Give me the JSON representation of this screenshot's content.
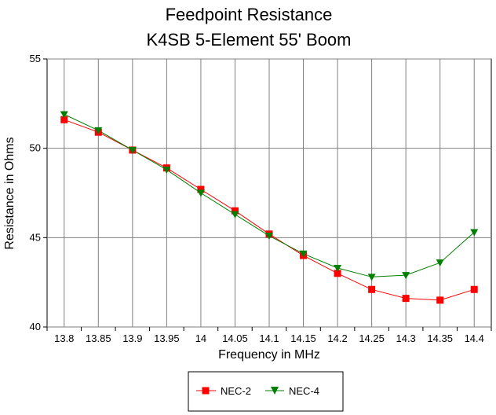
{
  "chart_data": {
    "type": "line",
    "title": [
      "Feedpoint Resistance",
      "K4SB 5-Element 55' Boom"
    ],
    "xlabel": "Frequency in MHz",
    "ylabel": "Resistance in Ohms",
    "categories": [
      "13.8",
      "13.85",
      "13.9",
      "13.95",
      "14",
      "14.05",
      "14.1",
      "14.15",
      "14.2",
      "14.25",
      "14.3",
      "14.35",
      "14.4"
    ],
    "ylim": [
      40,
      55
    ],
    "yticks": [
      "40",
      "45",
      "50",
      "55"
    ],
    "grid": true,
    "legend_position": "bottom",
    "series": [
      {
        "name": "NEC-2",
        "color": "#ff0000",
        "marker": "square",
        "values": [
          51.6,
          50.9,
          49.9,
          48.9,
          47.7,
          46.5,
          45.2,
          44.0,
          43.0,
          42.1,
          41.6,
          41.5,
          42.1
        ]
      },
      {
        "name": "NEC-4",
        "color": "#008000",
        "marker": "triangle-down",
        "values": [
          51.9,
          51.0,
          49.9,
          48.8,
          47.5,
          46.3,
          45.1,
          44.1,
          43.3,
          42.8,
          42.9,
          43.6,
          45.3
        ]
      }
    ]
  }
}
